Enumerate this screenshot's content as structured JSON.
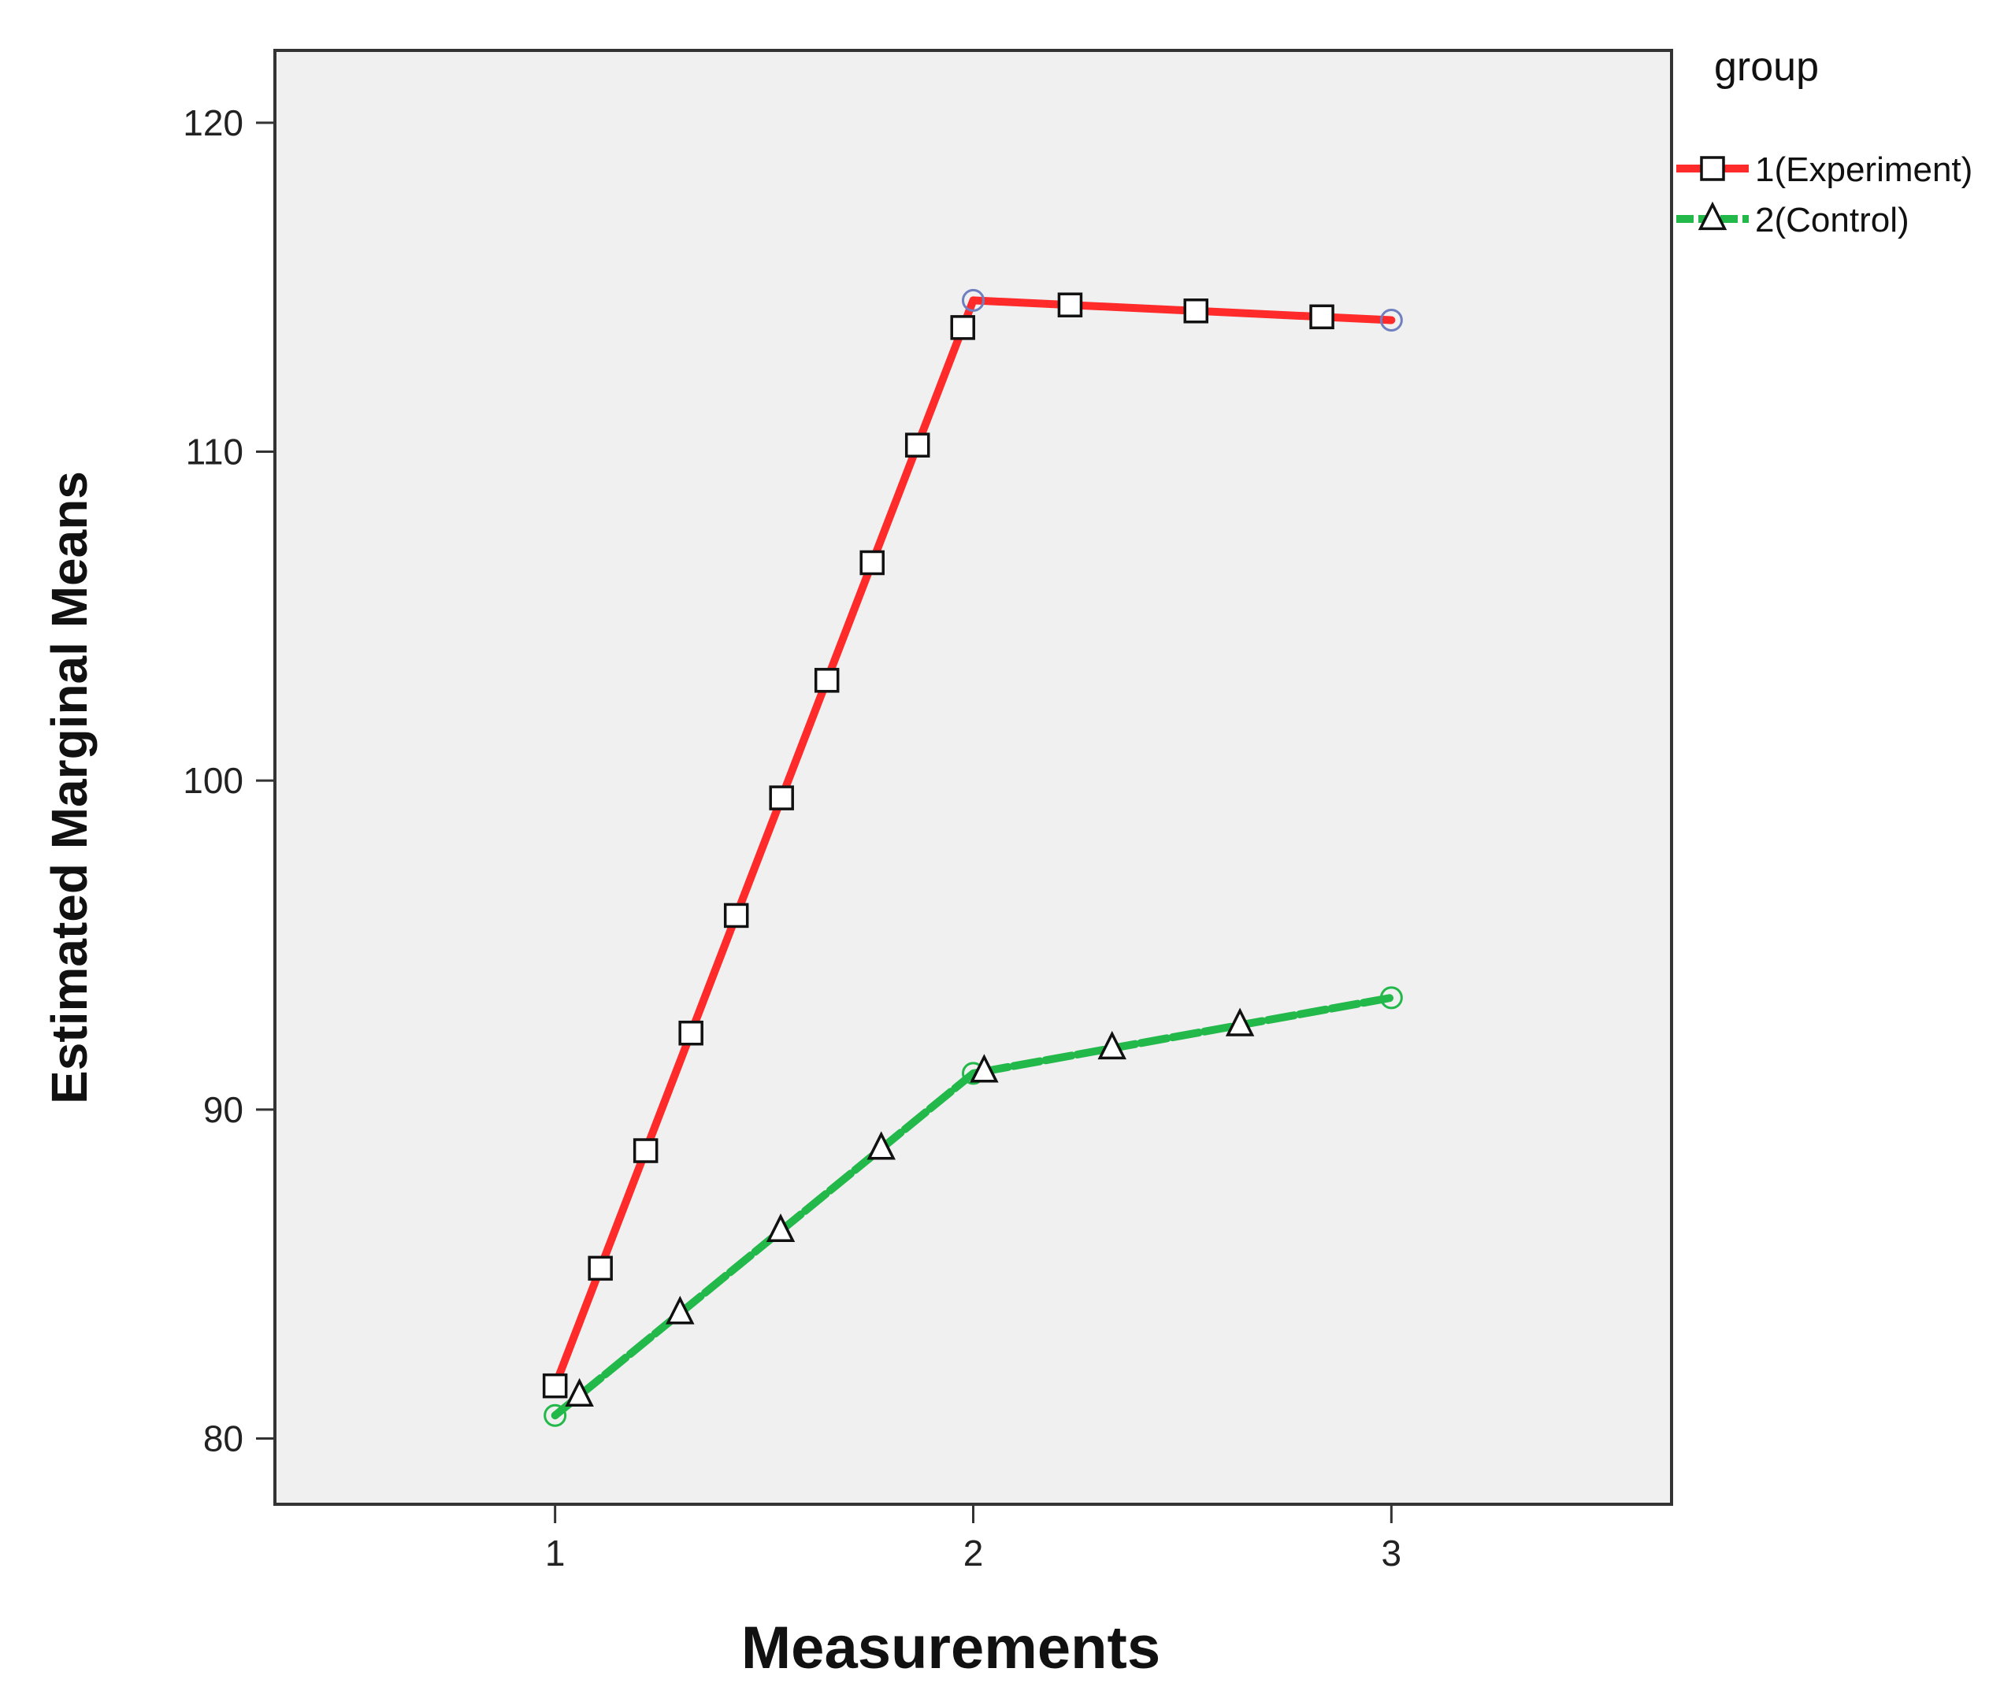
{
  "chart_data": {
    "type": "line",
    "xlabel": "Measurements",
    "ylabel": "Estimated Marginal Means",
    "x_ticks": [
      "1",
      "2",
      "3"
    ],
    "y_ticks": [
      "80",
      "90",
      "100",
      "110",
      "120"
    ],
    "xlim": [
      0.33,
      3.67
    ],
    "ylim": [
      78,
      122.2
    ],
    "grid": false,
    "legend": {
      "title": "group",
      "position": "top-right outside plot"
    },
    "series": [
      {
        "name": "1(Experiment)",
        "color": "#ff2a2a",
        "marker": "square",
        "line_style": "solid",
        "x": [
          1,
          2,
          3
        ],
        "y": [
          81.6,
          114.6,
          114.0
        ]
      },
      {
        "name": "2(Control)",
        "color": "#22b84a",
        "marker": "triangle",
        "line_style": "dashed",
        "x": [
          1,
          2,
          3
        ],
        "y": [
          80.7,
          91.1,
          93.4
        ]
      }
    ]
  },
  "colors": {
    "plot_background": "#f0f0f0",
    "frame": "#333333",
    "point_circle_blue": "#6f7fbf",
    "point_circle_green": "#22b84a"
  }
}
